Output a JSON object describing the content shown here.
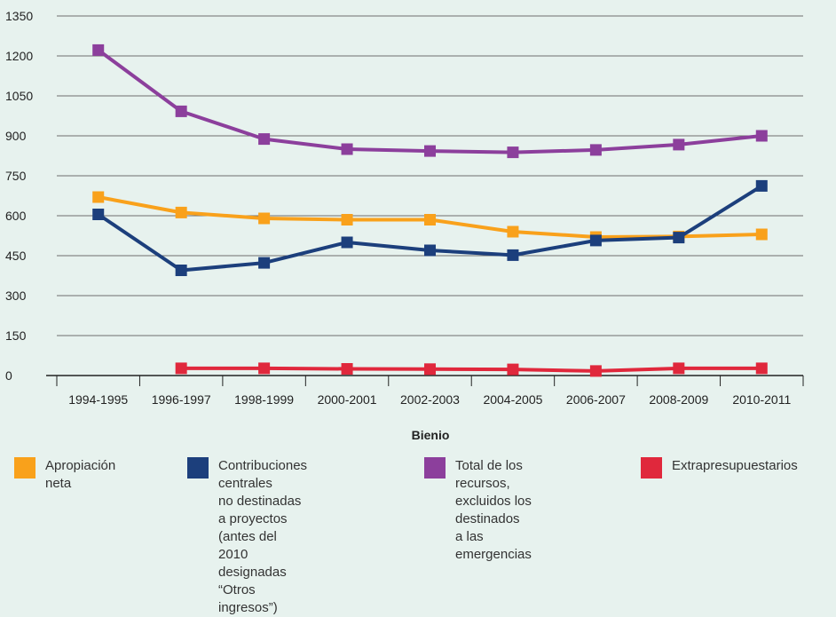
{
  "chart_data": {
    "type": "line",
    "categories": [
      "1994-1995",
      "1996-1997",
      "1998-1999",
      "2000-2001",
      "2002-2003",
      "2004-2005",
      "2006-2007",
      "2008-2009",
      "2010-2011"
    ],
    "xlabel": "Bienio",
    "ylabel": "",
    "ylim": [
      0,
      1350
    ],
    "yticks": [
      0,
      150,
      300,
      450,
      600,
      750,
      900,
      1050,
      1200,
      1350
    ],
    "grid": true,
    "legend_position": "bottom",
    "series": [
      {
        "name": "Apropiación neta",
        "color": "#f9a11b",
        "values": [
          670,
          612,
          590,
          585,
          585,
          540,
          520,
          522,
          530
        ]
      },
      {
        "name": "Contribuciones centrales\nno destinadas a proyectos\n(antes del 2010 designadas\n“Otros ingresos”)",
        "color": "#1c3f7c",
        "values": [
          605,
          395,
          423,
          500,
          470,
          452,
          507,
          518,
          712
        ]
      },
      {
        "name": "Total de los recursos,\nexcluidos los destinados\na las emergencias",
        "color": "#8c3f9c",
        "values": [
          1222,
          992,
          888,
          850,
          843,
          838,
          847,
          867,
          900
        ]
      },
      {
        "name": "Extrapresupuestarios",
        "color": "#e0283c",
        "values": [
          null,
          27,
          27,
          25,
          24,
          23,
          17,
          27,
          27
        ]
      }
    ]
  }
}
